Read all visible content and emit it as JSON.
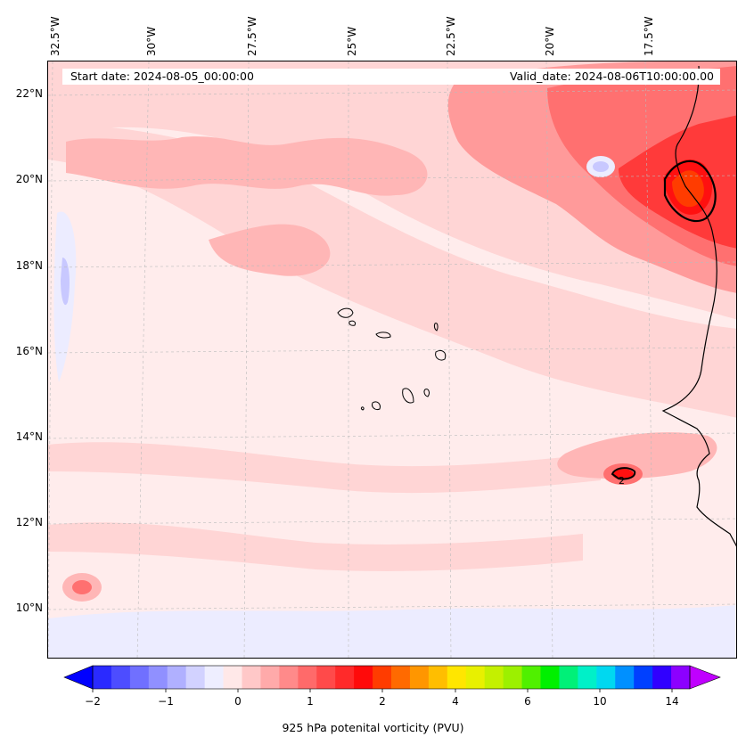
{
  "map": {
    "start_date": "Start date: 2024-08-05_00:00:00",
    "valid_date": "Valid_date: 2024-08-06T10:00:00.00",
    "lon_labels": [
      "32.5°W",
      "30°W",
      "27.5°W",
      "25°W",
      "22.5°W",
      "20°W",
      "17.5°W"
    ],
    "lat_labels": [
      "22°N",
      "20°N",
      "18°N",
      "16°N",
      "14°N",
      "12°N",
      "10°N"
    ],
    "contour_label": "2",
    "colors": {
      "background": "#ffecec",
      "light_pink": "#ffd5d5",
      "pink": "#ffb6b6",
      "salmon": "#ff9a9a",
      "red_light": "#ff7070",
      "red": "#ff3a3a",
      "red_strong": "#ff1010",
      "orange_red": "#ff3c00",
      "light_blue": "#ececff",
      "blue": "#c8c8ff"
    }
  },
  "colorbar": {
    "title": "925 hPa potenital vorticity (PVU)",
    "tick_labels": [
      "−2",
      "−1",
      "0",
      "1",
      "2",
      "4",
      "6",
      "10",
      "14"
    ],
    "colors": [
      "#0000ff",
      "#2a2aff",
      "#4d4dff",
      "#7070ff",
      "#9090ff",
      "#b0b0ff",
      "#d2d2ff",
      "#eeeeff",
      "#ffe8e8",
      "#ffc8c8",
      "#ffaaaa",
      "#ff8a8a",
      "#ff6a6a",
      "#ff4a4a",
      "#ff2a2a",
      "#ff0a0a",
      "#ff3c00",
      "#ff6a00",
      "#ff9600",
      "#ffbe00",
      "#ffe600",
      "#e8f000",
      "#c4f000",
      "#9cf000",
      "#50f000",
      "#00f000",
      "#00f078",
      "#00f0c8",
      "#00d8f0",
      "#0090ff",
      "#0040ff",
      "#3000ff",
      "#8c00ff",
      "#c000ff"
    ]
  }
}
